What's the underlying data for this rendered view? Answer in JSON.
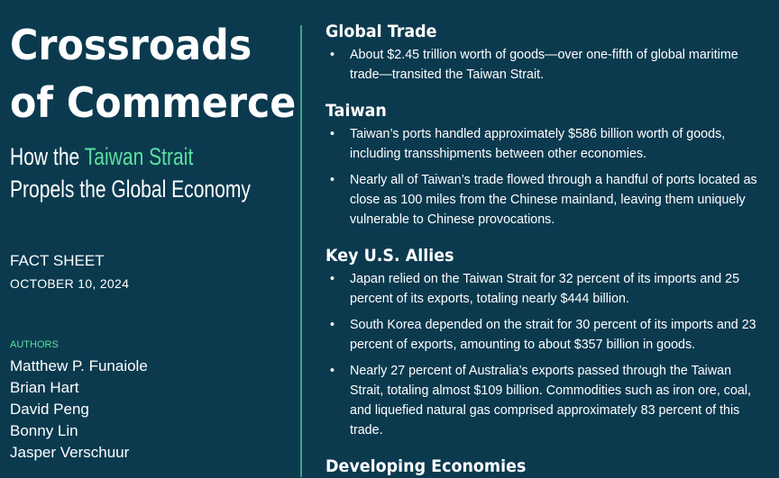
{
  "title": {
    "line1": "Crossroads",
    "line2": "of Commerce"
  },
  "subtitle": {
    "prefix": "How the ",
    "highlight": "Taiwan Strait",
    "line2": "Propels the Global Economy"
  },
  "doc_type": "FACT SHEET",
  "date": "OCTOBER 10, 2024",
  "authors_label": "AUTHORS",
  "authors": [
    "Matthew P. Funaiole",
    "Brian Hart",
    "David Peng",
    "Bonny Lin",
    "Jasper Verschuur"
  ],
  "colors": {
    "background": "#0b3a4f",
    "accent": "#5ce0a0",
    "divider": "#3fa389"
  },
  "sections": [
    {
      "heading": "Global Trade",
      "bullets": [
        "About $2.45 trillion worth of goods—over one-fifth of global maritime trade—transited the Taiwan Strait."
      ]
    },
    {
      "heading": "Taiwan",
      "bullets": [
        "Taiwan’s ports handled approximately $586 billion worth of goods, including transshipments between other economies.",
        "Nearly all of Taiwan’s trade flowed through a handful of ports located as close as 100 miles from the Chinese mainland, leaving them uniquely vulnerable to Chinese provocations."
      ]
    },
    {
      "heading": "Key U.S. Allies",
      "bullets": [
        "Japan relied on the Taiwan Strait for 32 percent of its imports and 25 percent of its exports, totaling nearly $444 billion.",
        "South Korea depended on the strait for 30 percent of its imports and 23 percent of exports, amounting to about $357 billion in goods.",
        "Nearly 27 percent of Australia’s exports passed through the Taiwan Strait, totaling almost $109 billion. Commodities such as iron ore, coal, and liquefied natural gas comprised approximately 83 percent of this trade."
      ]
    },
    {
      "heading": "Developing Economies",
      "bullets": []
    }
  ]
}
